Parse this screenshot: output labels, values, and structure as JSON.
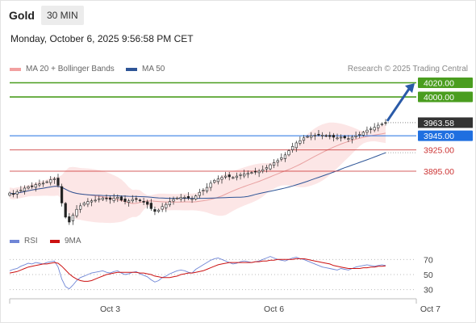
{
  "header": {
    "symbol": "Gold",
    "interval": "30 MIN",
    "datetime": "Monday, October 6, 2025 9:56:58 PM CET"
  },
  "colors": {
    "bollinger": "#f2a0a0",
    "ma50": "#2e5597",
    "ma20": "#e8a0a0",
    "target_green": "#4a9d1f",
    "support_red": "#cc3333",
    "pivot_blue": "#1f6fe0",
    "last_price_bg": "#333333",
    "rsi": "#6f86d6",
    "rsi_ma": "#cc1111"
  },
  "chart_data": [
    {
      "type": "candlestick",
      "legend": [
        {
          "name": "MA 20 + Bollinger Bands",
          "color": "#f2a0a0"
        },
        {
          "name": "MA 50",
          "color": "#2e5597"
        }
      ],
      "credit": "Research © 2025 Trading Central",
      "levels": [
        {
          "value": 4020.0,
          "label": "4020.00",
          "kind": "target"
        },
        {
          "value": 4000.0,
          "label": "4000.00",
          "kind": "target"
        },
        {
          "value": 3945.0,
          "label": "3945.00",
          "kind": "pivot"
        },
        {
          "value": 3925.0,
          "label": "3925.00",
          "kind": "support"
        },
        {
          "value": 3895.0,
          "label": "3895.00",
          "kind": "support"
        }
      ],
      "last_price": {
        "value": 3963.58,
        "label": "3963.58"
      },
      "ylim": [
        3815,
        4032
      ],
      "x_ticks": [
        {
          "label": "Oct 3",
          "index": 27
        },
        {
          "label": "Oct 6",
          "index": 71
        },
        {
          "label": "Oct 7",
          "index": 113
        }
      ],
      "arrow": {
        "direction": "up",
        "from": 3966,
        "to": 4017
      },
      "close": [
        3864,
        3862,
        3866,
        3868,
        3871,
        3873,
        3874,
        3876,
        3877,
        3878,
        3880,
        3883,
        3884,
        3875,
        3850,
        3830,
        3823,
        3833,
        3841,
        3846,
        3850,
        3852,
        3853,
        3854,
        3856,
        3857,
        3856,
        3855,
        3857,
        3858,
        3854,
        3852,
        3853,
        3855,
        3856,
        3853,
        3851,
        3848,
        3842,
        3838,
        3840,
        3845,
        3848,
        3852,
        3855,
        3857,
        3858,
        3858,
        3857,
        3856,
        3860,
        3865,
        3868,
        3872,
        3878,
        3882,
        3884,
        3886,
        3888,
        3887,
        3886,
        3888,
        3890,
        3891,
        3892,
        3893,
        3894,
        3895,
        3897,
        3900,
        3904,
        3907,
        3910,
        3914,
        3918,
        3924,
        3930,
        3935,
        3938,
        3942,
        3944,
        3945,
        3946,
        3947,
        3946,
        3945,
        3944,
        3943,
        3942,
        3943,
        3942,
        3941,
        3943,
        3945,
        3947,
        3950,
        3953,
        3955,
        3957,
        3960,
        3962,
        3963.58
      ]
    },
    {
      "type": "line",
      "legend": [
        {
          "name": "RSI",
          "color": "#6f86d6"
        },
        {
          "name": "9MA",
          "color": "#cc1111"
        }
      ],
      "y_ticks": [
        70,
        50,
        30
      ],
      "ylim": [
        20,
        80
      ],
      "series": [
        {
          "name": "RSI",
          "values": [
            55,
            57,
            58,
            61,
            63,
            65,
            64,
            66,
            65,
            64,
            66,
            67,
            68,
            60,
            44,
            34,
            31,
            36,
            42,
            46,
            48,
            50,
            52,
            53,
            54,
            55,
            53,
            52,
            54,
            55,
            52,
            50,
            51,
            53,
            54,
            51,
            49,
            47,
            43,
            40,
            42,
            46,
            48,
            51,
            53,
            55,
            56,
            55,
            53,
            52,
            57,
            60,
            63,
            66,
            69,
            71,
            72,
            70,
            68,
            66,
            64,
            65,
            67,
            68,
            67,
            66,
            67,
            68,
            70,
            72,
            74,
            72,
            70,
            69,
            68,
            70,
            72,
            73,
            71,
            70,
            68,
            66,
            64,
            62,
            60,
            59,
            58,
            57,
            56,
            58,
            57,
            56,
            58,
            60,
            61,
            62,
            63,
            62,
            61,
            62,
            63,
            62
          ]
        },
        {
          "name": "9MA",
          "values": [
            52,
            53,
            54,
            56,
            58,
            60,
            61,
            62,
            63,
            64,
            64,
            65,
            66,
            65,
            61,
            56,
            51,
            47,
            44,
            42,
            41,
            41,
            42,
            44,
            46,
            48,
            50,
            51,
            52,
            53,
            53,
            53,
            53,
            53,
            53,
            52,
            52,
            51,
            50,
            48,
            47,
            46,
            46,
            46,
            47,
            48,
            50,
            51,
            52,
            52,
            53,
            54,
            55,
            57,
            59,
            61,
            63,
            64,
            65,
            66,
            66,
            66,
            66,
            66,
            66,
            66,
            67,
            67,
            68,
            68,
            69,
            69,
            70,
            70,
            70,
            70,
            70,
            71,
            71,
            71,
            70,
            69,
            68,
            67,
            66,
            65,
            64,
            62,
            61,
            60,
            59,
            58,
            58,
            58,
            58,
            59,
            59,
            60,
            60,
            61,
            61,
            61.5
          ]
        }
      ]
    }
  ]
}
